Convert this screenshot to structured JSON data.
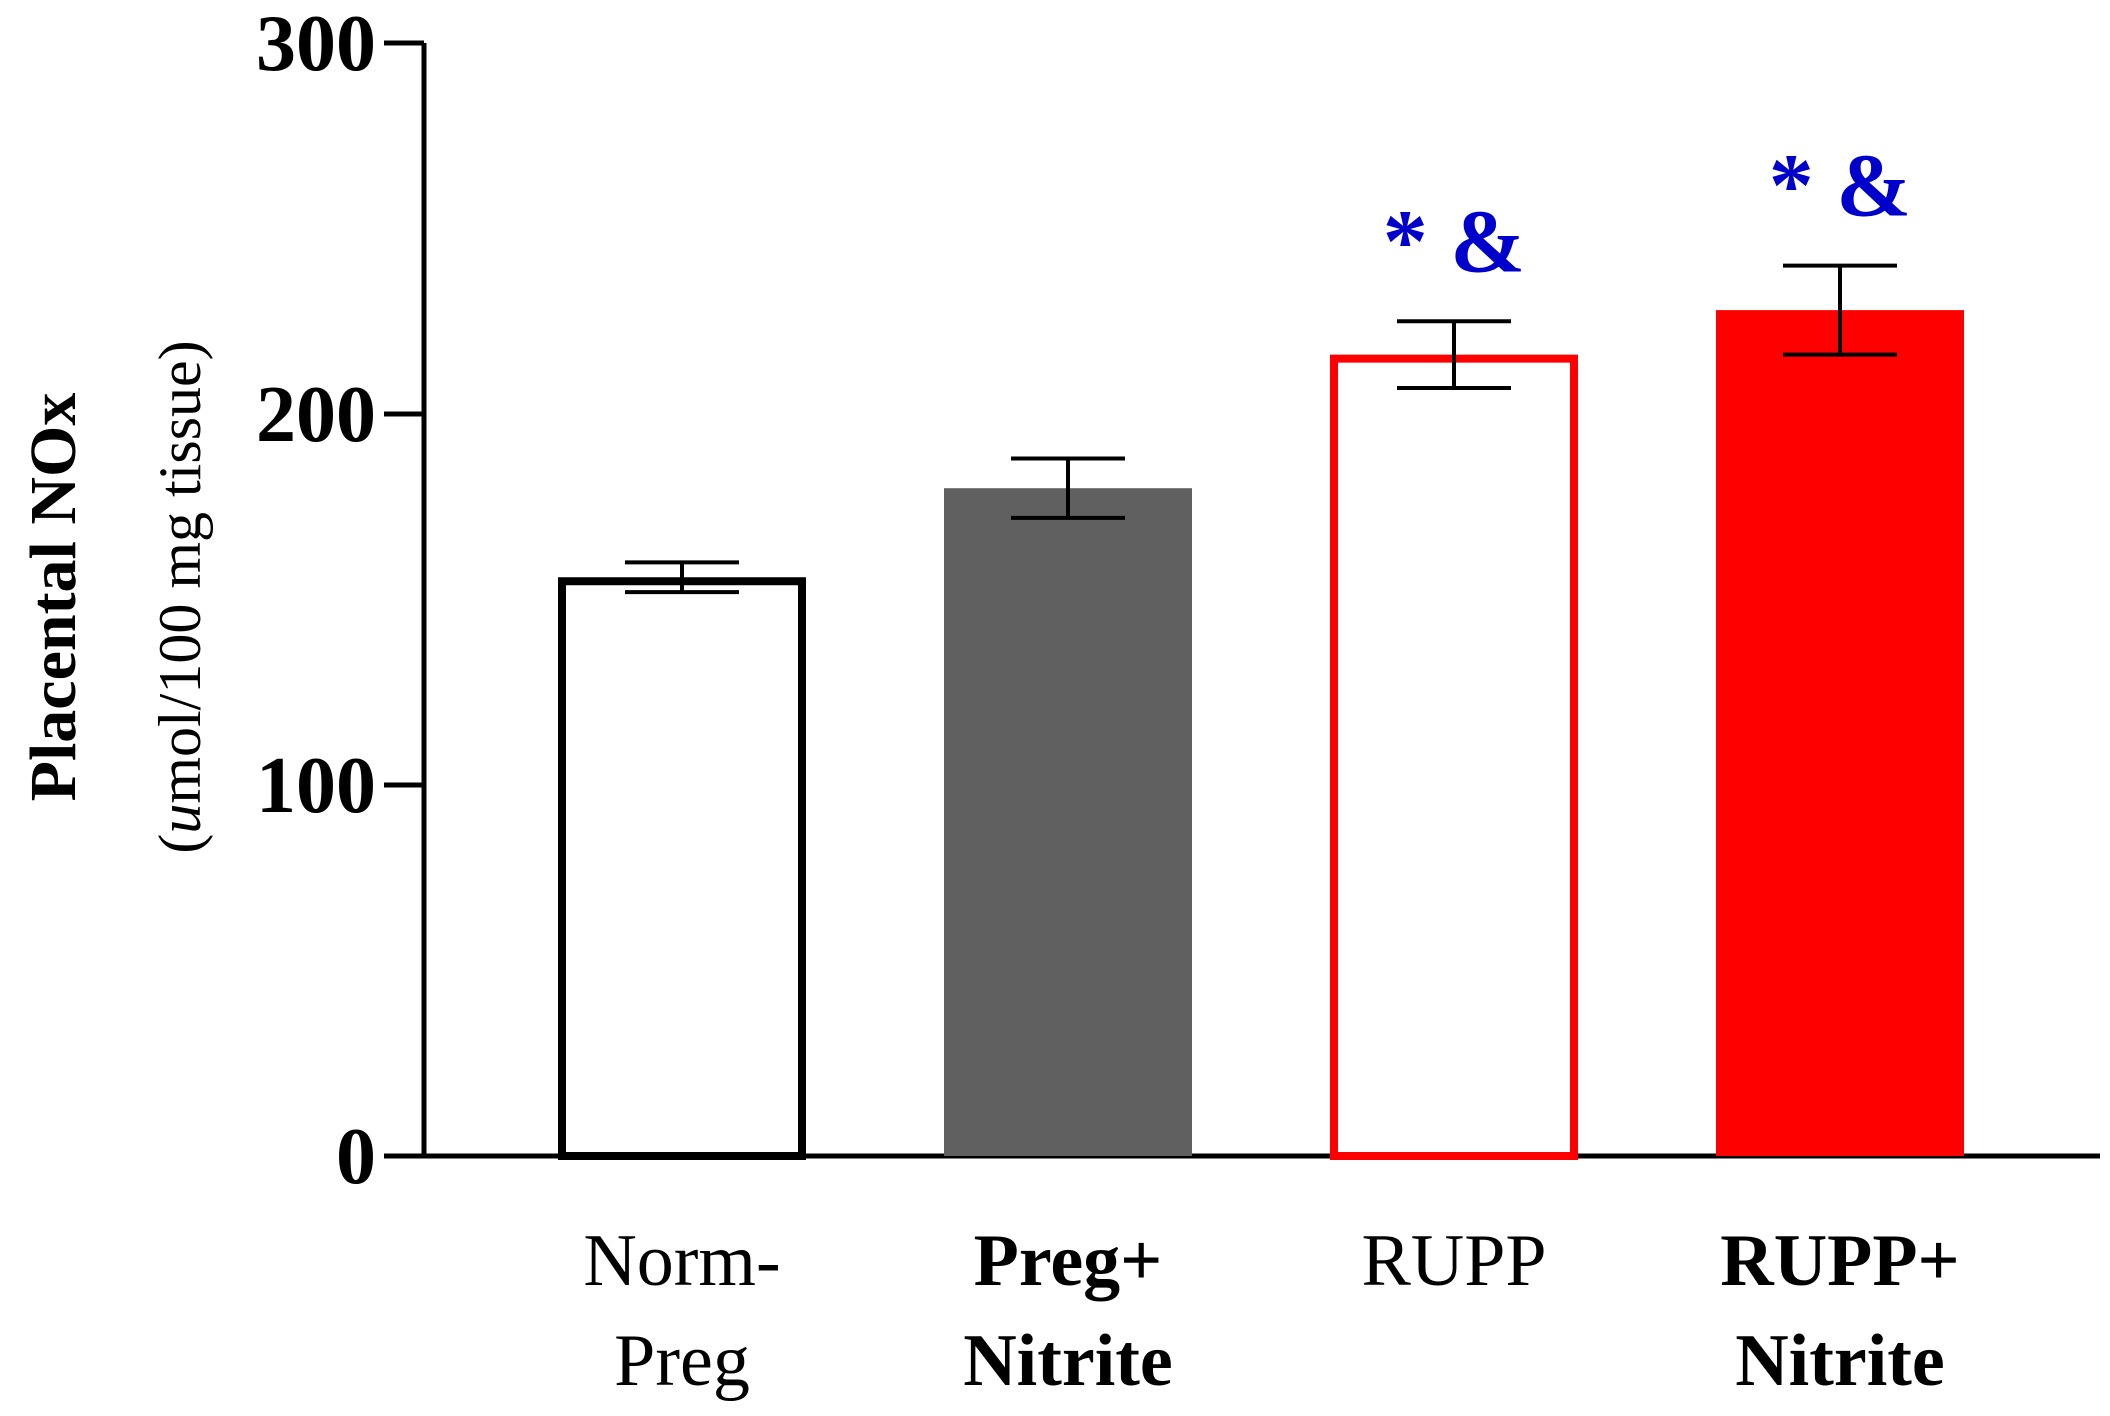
{
  "chart_data": {
    "type": "bar",
    "title": "",
    "xlabel": "",
    "ylabel": "Placental  NOx",
    "ylabel_units": {
      "open": "(",
      "italic": "u",
      "rest": "mol/100 mg tissue)"
    },
    "ylim": [
      0,
      300
    ],
    "yticks": [
      "0",
      "100",
      "200",
      "300"
    ],
    "categories": [
      {
        "lines": [
          "Norm-",
          "Preg"
        ],
        "bold": false
      },
      {
        "lines": [
          "Preg+",
          "Nitrite"
        ],
        "bold": true
      },
      {
        "lines": [
          "RUPP"
        ],
        "bold": false
      },
      {
        "lines": [
          "RUPP+",
          "Nitrite"
        ],
        "bold": true
      }
    ],
    "values": [
      156,
      180,
      216,
      228
    ],
    "errors": [
      4,
      8,
      9,
      12
    ],
    "bar_styles": [
      {
        "fill": "#ffffff",
        "stroke": "#000000"
      },
      {
        "fill": "#606060",
        "stroke": "#606060"
      },
      {
        "fill": "#ffffff",
        "stroke": "#ff0000"
      },
      {
        "fill": "#ff0000",
        "stroke": "#ff0000"
      }
    ],
    "annotations": [
      "",
      "",
      "* &",
      "* &"
    ],
    "annotation_color": "#0000cc"
  }
}
